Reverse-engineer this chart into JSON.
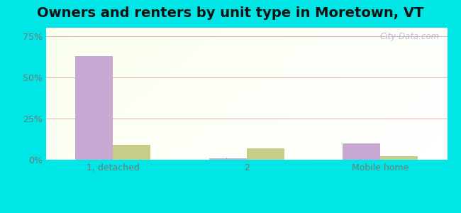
{
  "title": "Owners and renters by unit type in Moretown, VT",
  "categories": [
    "1, detached",
    "2",
    "Mobile home"
  ],
  "owner_values": [
    63,
    1,
    10
  ],
  "renter_values": [
    9,
    7,
    2
  ],
  "owner_color": "#c9a8d4",
  "renter_color": "#c8cc8a",
  "bar_width": 0.28,
  "ylim": [
    0,
    80
  ],
  "yticks": [
    0,
    25,
    50,
    75
  ],
  "ytick_labels": [
    "0%",
    "25%",
    "50%",
    "75%"
  ],
  "figure_bg": "#00e5e5",
  "title_fontsize": 14,
  "watermark": "City-Data.com",
  "grid_color": "#e8b8b8",
  "tick_color": "#777777"
}
